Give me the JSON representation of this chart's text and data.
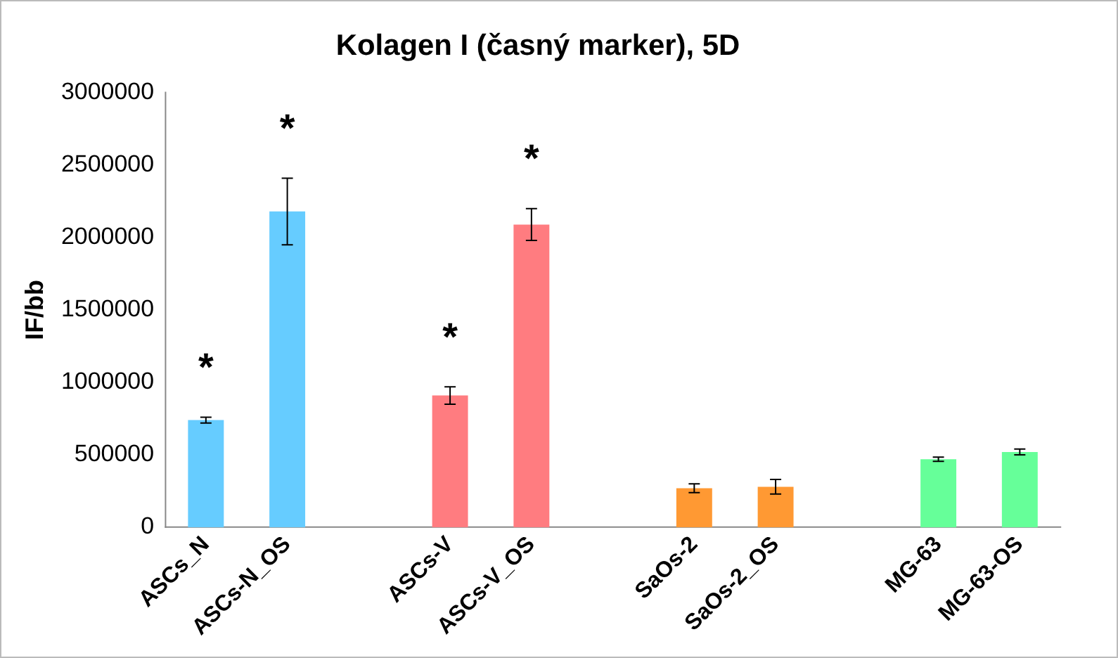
{
  "chart_data": {
    "type": "bar",
    "title": "Kolagen I (časný marker), 5D",
    "ylabel": "IF/bb",
    "categories": [
      "ASCs_N",
      "ASCs-N_OS",
      null,
      "ASCs-V",
      "ASCs-V_OS",
      null,
      "SaOs-2",
      "SaOs-2_OS",
      null,
      "MG-63",
      "MG-63-OS"
    ],
    "values": [
      740000,
      2180000,
      null,
      910000,
      2090000,
      null,
      270000,
      280000,
      null,
      470000,
      520000
    ],
    "errors": [
      20000,
      230000,
      null,
      60000,
      110000,
      null,
      30000,
      50000,
      null,
      15000,
      20000
    ],
    "colors": [
      "#66ccff",
      "#66ccff",
      "#66ccff",
      "#ff7c80",
      "#ff7c80",
      "#ff7c80",
      "#ff9933",
      "#ff9933",
      "#ff9933",
      "#66ff99",
      "#66ff99"
    ],
    "ylim": [
      0,
      3000000
    ],
    "yticks": [
      0,
      500000,
      1000000,
      1500000,
      2000000,
      2500000,
      3000000
    ],
    "grid": false,
    "legend": false,
    "annotations": [
      {
        "text": "*",
        "x": "ASCs_N",
        "y": 740000
      },
      {
        "text": "*",
        "x": "ASCs-N_OS",
        "y": 2180000
      },
      {
        "text": "*",
        "x": "ASCs-V",
        "y": 910000
      },
      {
        "text": "*",
        "x": "ASCs-V_OS",
        "y": 2090000
      }
    ]
  }
}
